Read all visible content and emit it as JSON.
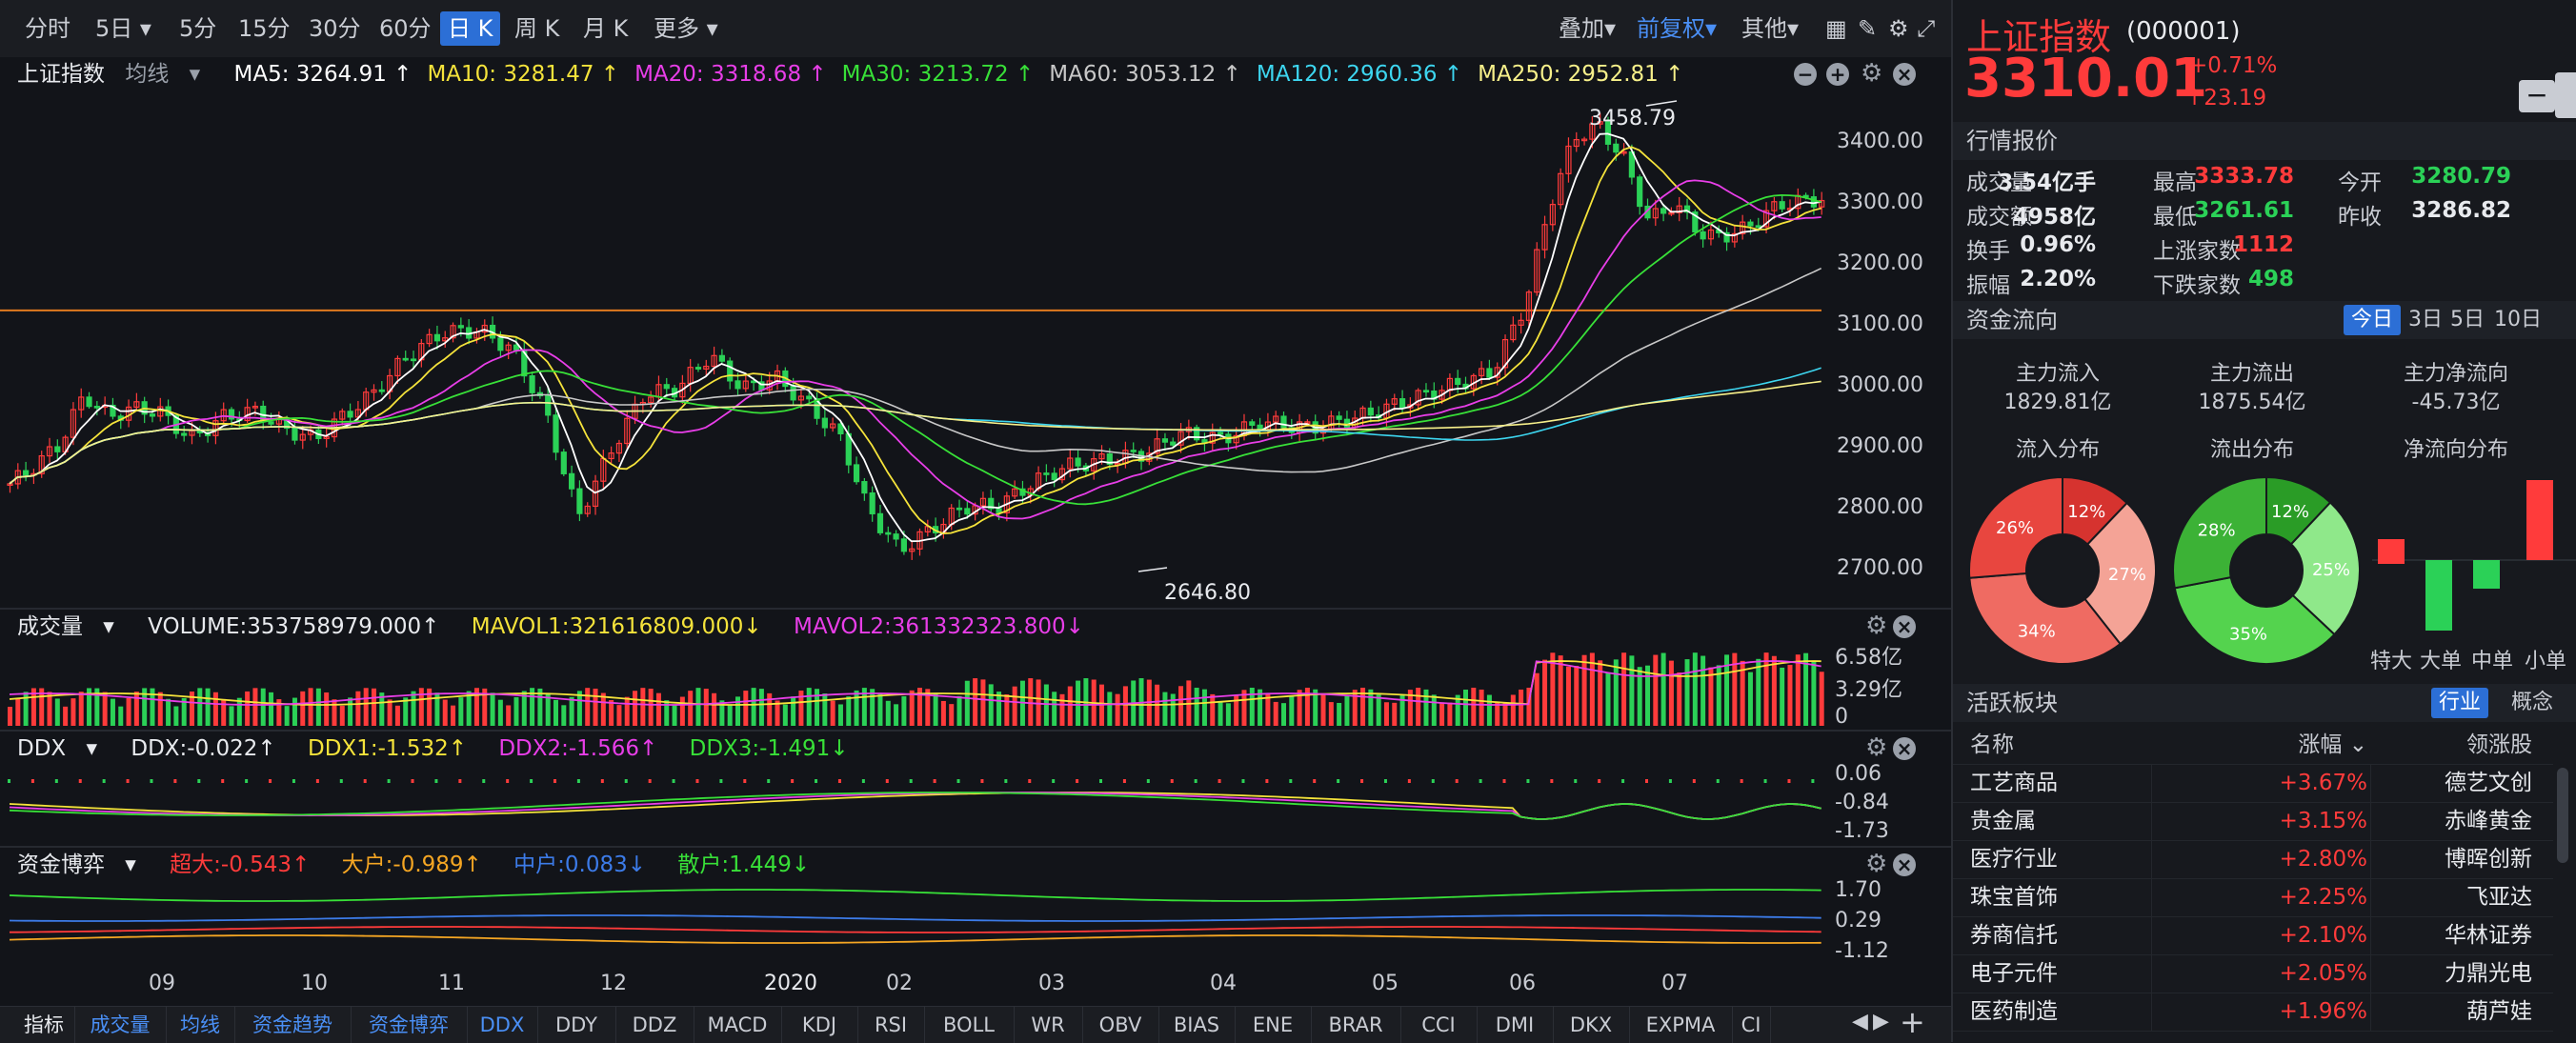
{
  "toolbar": {
    "periods": [
      "分时",
      "5日",
      "5分",
      "15分",
      "30分",
      "60分",
      "日 K",
      "周 K",
      "月 K",
      "更多"
    ],
    "active_period": "日 K",
    "overlay_label": "叠加",
    "adjust_label": "前复权",
    "other_label": "其他"
  },
  "main_panel": {
    "name": "上证指数",
    "mode": "均线",
    "ma": [
      {
        "label": "MA5: 3264.91 ↑",
        "color": "#ffffff"
      },
      {
        "label": "MA10: 3281.47 ↑",
        "color": "#f5e33b"
      },
      {
        "label": "MA20: 3318.68 ↑",
        "color": "#e83ee8"
      },
      {
        "label": "MA30: 3213.72 ↑",
        "color": "#38e038"
      },
      {
        "label": "MA60: 3053.12 ↑",
        "color": "#c8c8c8"
      },
      {
        "label": "MA120: 2960.36 ↑",
        "color": "#3dd6f0"
      },
      {
        "label": "MA250: 2952.81 ↑",
        "color": "#f7f08a"
      }
    ],
    "high_label": "3458.79",
    "low_label": "2646.80",
    "y_ticks": [
      "3400.00",
      "3300.00",
      "3200.00",
      "3100.00",
      "3000.00",
      "2900.00",
      "2800.00",
      "2700.00"
    ]
  },
  "volume_panel": {
    "name": "成交量",
    "volume": "VOLUME:353758979.000↑",
    "mavol1": "MAVOL1:321616809.000↓",
    "mavol2": "MAVOL2:361332323.800↓",
    "y_ticks": [
      "6.58亿",
      "3.29亿",
      "0"
    ]
  },
  "ddx_panel": {
    "name": "DDX",
    "ddx": "DDX:-0.022↑",
    "ddx1": "DDX1:-1.532↑",
    "ddx2": "DDX2:-1.566↑",
    "ddx3": "DDX3:-1.491↓",
    "y_ticks": [
      "0.06",
      "-0.84",
      "-1.73"
    ]
  },
  "fund_panel": {
    "name": "资金博弈",
    "super": "超大:-0.543↑",
    "large": "大户:-0.989↑",
    "mid": "中户:0.083↓",
    "retail": "散户:1.449↓",
    "y_ticks": [
      "1.70",
      "0.29",
      "-1.12"
    ]
  },
  "x_axis": [
    "09",
    "10",
    "11",
    "12",
    "2020",
    "02",
    "03",
    "04",
    "05",
    "06",
    "07"
  ],
  "bottom_tabs": [
    "指标",
    "成交量",
    "均线",
    "资金趋势",
    "资金博弈",
    "DDX",
    "DDY",
    "DDZ",
    "MACD",
    "KDJ",
    "RSI",
    "BOLL",
    "WR",
    "OBV",
    "BIAS",
    "ENE",
    "BRAR",
    "CCI",
    "DMI",
    "DKX",
    "EXPMA",
    "CI"
  ],
  "quote": {
    "name": "上证指数",
    "code": "(000001)",
    "price": "3310.01",
    "change_pct": "+0.71%",
    "change": "↑23.19"
  },
  "market_section": "行情报价",
  "market": {
    "rows": [
      [
        {
          "l": "成交量",
          "v": "3.54亿手",
          "c": "white"
        },
        {
          "l": "最高",
          "v": "3333.78",
          "c": "red"
        },
        {
          "l": "今开",
          "v": "3280.79",
          "c": "green"
        }
      ],
      [
        {
          "l": "成交额",
          "v": "4958亿",
          "c": "white"
        },
        {
          "l": "最低",
          "v": "3261.61",
          "c": "green"
        },
        {
          "l": "昨收",
          "v": "3286.82",
          "c": "white"
        }
      ],
      [
        {
          "l": "换手",
          "v": "0.96%",
          "c": "white"
        },
        {
          "l": "上涨家数",
          "v": "1112",
          "c": "red"
        },
        {
          "l": "",
          "v": "",
          "c": "white"
        }
      ],
      [
        {
          "l": "振幅",
          "v": "2.20%",
          "c": "white"
        },
        {
          "l": "下跌家数",
          "v": "498",
          "c": "green"
        },
        {
          "l": "",
          "v": "",
          "c": "white"
        }
      ]
    ]
  },
  "flow_section": "资金流向",
  "flow_periods": [
    "今日",
    "3日",
    "5日",
    "10日"
  ],
  "flow": {
    "in_label": "主力流入",
    "in_value": "1829.81亿",
    "out_label": "主力流出",
    "out_value": "1875.54亿",
    "net_label": "主力净流向",
    "net_value": "-45.73亿",
    "in_dist": "流入分布",
    "out_dist": "流出分布",
    "net_dist": "净流向分布",
    "in_pie": [
      12,
      27,
      34,
      26
    ],
    "out_pie": [
      12,
      25,
      35,
      28
    ],
    "net_bars": [
      "特大",
      "大单",
      "中单",
      "小单"
    ]
  },
  "sectors_section": "活跃板块",
  "sector_tabs": [
    "行业",
    "概念"
  ],
  "sector_header": {
    "name": "名称",
    "change": "涨幅",
    "leader": "领涨股"
  },
  "sectors": [
    {
      "name": "工艺商品",
      "change": "+3.67%",
      "leader": "德艺文创"
    },
    {
      "name": "贵金属",
      "change": "+3.15%",
      "leader": "赤峰黄金"
    },
    {
      "name": "医疗行业",
      "change": "+2.80%",
      "leader": "博晖创新"
    },
    {
      "name": "珠宝首饰",
      "change": "+2.25%",
      "leader": "飞亚达"
    },
    {
      "name": "券商信托",
      "change": "+2.10%",
      "leader": "华林证券"
    },
    {
      "name": "电子元件",
      "change": "+2.05%",
      "leader": "力鼎光电"
    },
    {
      "name": "医药制造",
      "change": "+1.96%",
      "leader": "葫芦娃"
    }
  ],
  "colors": {
    "up": "#ff3b3b",
    "down": "#2bd157",
    "accent": "#2c6fd6",
    "hline": "#e07a1f"
  }
}
